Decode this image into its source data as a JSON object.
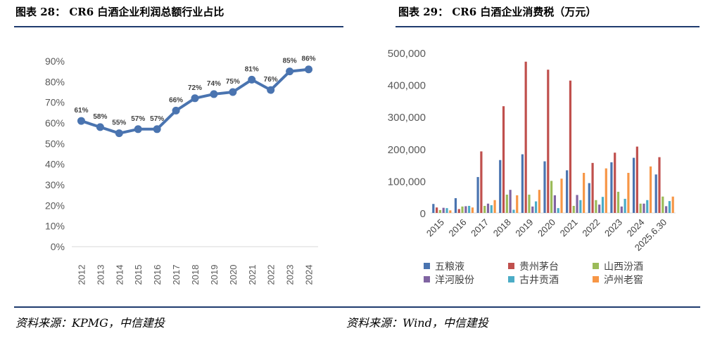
{
  "left_panel": {
    "header": "图表 28：   CR6 白酒企业利润总额行业占比",
    "source": "资料来源：KPMG，中信建投"
  },
  "right_panel": {
    "header": "图表 29：   CR6 白酒企业消费税（万元）",
    "source": "资料来源：Wind，中信建投"
  },
  "colors": {
    "rule": "#1f3b6e",
    "line": "#4a74b0"
  },
  "chart_data": [
    {
      "type": "line",
      "x": [
        "2012",
        "2013",
        "2014",
        "2015",
        "2016",
        "2017",
        "2018",
        "2019",
        "2020",
        "2021",
        "2022",
        "2023",
        "2024"
      ],
      "values": [
        61,
        58,
        55,
        57,
        57,
        66,
        72,
        74,
        75,
        81,
        76,
        85,
        86
      ],
      "data_labels": [
        "61%",
        "58%",
        "55%",
        "57%",
        "57%",
        "66%",
        "72%",
        "74%",
        "75%",
        "81%",
        "76%",
        "85%",
        "86%"
      ],
      "yticks": [
        "0%",
        "10%",
        "20%",
        "30%",
        "40%",
        "50%",
        "60%",
        "70%",
        "80%",
        "90%"
      ],
      "ylim": [
        0,
        90
      ],
      "grid": false
    },
    {
      "type": "bar",
      "categories": [
        "2015",
        "2016",
        "2017",
        "2018",
        "2019",
        "2020",
        "2021",
        "2022",
        "2023",
        "2024",
        "2025.6.30"
      ],
      "yticks": [
        "0",
        "100,000",
        "200,000",
        "300,000",
        "400,000",
        "500,000"
      ],
      "ylim": [
        0,
        500000
      ],
      "grid": false,
      "legend_position": "bottom",
      "series": [
        {
          "name": "五粮液",
          "color": "#4a74b0",
          "values": [
            28000,
            46000,
            112000,
            165000,
            183000,
            161000,
            133000,
            93000,
            158000,
            172000,
            120000
          ]
        },
        {
          "name": "贵州茅台",
          "color": "#c0504d",
          "values": [
            17000,
            12000,
            192000,
            333000,
            472000,
            447000,
            413000,
            156000,
            188000,
            207000,
            174000
          ]
        },
        {
          "name": "山西汾酒",
          "color": "#9bbb59",
          "values": [
            9000,
            20000,
            22000,
            57000,
            57000,
            100000,
            22000,
            40000,
            66000,
            29000,
            51000
          ]
        },
        {
          "name": "洋河股份",
          "color": "#8064a2",
          "values": [
            16000,
            21000,
            29000,
            72000,
            20000,
            55000,
            56000,
            26000,
            20000,
            29000,
            21000
          ]
        },
        {
          "name": "古井贡酒",
          "color": "#4bacc6",
          "values": [
            15000,
            22000,
            24000,
            10000,
            36000,
            15000,
            40000,
            50000,
            44000,
            40000,
            37000
          ]
        },
        {
          "name": "泸州老窖",
          "color": "#f79646",
          "values": [
            8000,
            17000,
            40000,
            55000,
            72000,
            107000,
            125000,
            139000,
            125000,
            145000,
            51000
          ]
        }
      ]
    }
  ]
}
